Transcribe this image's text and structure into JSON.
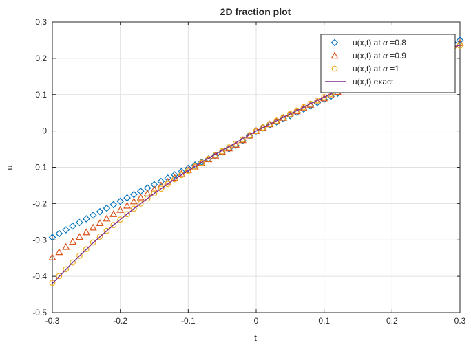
{
  "chart_data": {
    "type": "scatter",
    "title": "2D fraction plot",
    "xlabel": "t",
    "ylabel": "u",
    "xlim": [
      -0.3,
      0.3
    ],
    "ylim": [
      -0.5,
      0.3
    ],
    "xticks": [
      "-0.3",
      "-0.2",
      "-0.1",
      "0",
      "0.1",
      "0.2",
      "0.3"
    ],
    "yticks": [
      "0.3",
      "0.2",
      "0.1",
      "0",
      "-0.1",
      "-0.2",
      "-0.3",
      "-0.4",
      "-0.5"
    ],
    "grid": true,
    "legend_position": "top-right",
    "legend": [
      {
        "prefix": "u(x,t) at ",
        "symbol": "α",
        "suffix": " =0.8",
        "marker": "diamond",
        "color": "#0072BD"
      },
      {
        "prefix": "u(x,t) at ",
        "symbol": "α",
        "suffix": " =0.9",
        "marker": "triangle",
        "color": "#D95319"
      },
      {
        "prefix": "u(x,t) at ",
        "symbol": "α",
        "suffix": " =1",
        "marker": "circle",
        "color": "#EDB120"
      },
      {
        "prefix": "u(x,t) exact",
        "symbol": "",
        "suffix": "",
        "marker": "line",
        "color": "#7E2F8E"
      }
    ],
    "x": [
      -0.3,
      -0.27,
      -0.24,
      -0.21,
      -0.18,
      -0.15,
      -0.12,
      -0.09,
      -0.06,
      -0.03,
      0.0,
      0.03,
      0.06,
      0.09,
      0.12,
      0.15,
      0.18,
      0.21,
      0.24,
      0.27,
      0.3
    ],
    "series": [
      {
        "name": "u(x,t) at α =0.8",
        "marker": "diamond",
        "color": "#0072BD",
        "values": [
          -0.293,
          -0.262,
          -0.232,
          -0.203,
          -0.175,
          -0.148,
          -0.121,
          -0.094,
          -0.068,
          -0.04,
          0.0,
          0.025,
          0.051,
          0.078,
          0.104,
          0.131,
          0.157,
          0.182,
          0.207,
          0.23,
          0.25
        ]
      },
      {
        "name": "u(x,t) at α =0.9",
        "marker": "triangle",
        "color": "#D95319",
        "values": [
          -0.348,
          -0.305,
          -0.266,
          -0.229,
          -0.194,
          -0.161,
          -0.129,
          -0.098,
          -0.068,
          -0.038,
          0.0,
          0.027,
          0.054,
          0.081,
          0.107,
          0.133,
          0.158,
          0.183,
          0.206,
          0.226,
          0.242
        ]
      },
      {
        "name": "u(x,t) at α =1",
        "marker": "circle",
        "color": "#EDB120",
        "values": [
          -0.418,
          -0.362,
          -0.307,
          -0.259,
          -0.214,
          -0.172,
          -0.133,
          -0.098,
          -0.066,
          -0.035,
          0.0,
          0.028,
          0.056,
          0.084,
          0.111,
          0.137,
          0.161,
          0.184,
          0.205,
          0.222,
          0.235
        ]
      },
      {
        "name": "u(x,t) exact",
        "marker": "line",
        "color": "#7E2F8E",
        "values": [
          -0.42,
          -0.362,
          -0.308,
          -0.259,
          -0.214,
          -0.172,
          -0.133,
          -0.097,
          -0.064,
          -0.033,
          0.0,
          0.028,
          0.056,
          0.084,
          0.111,
          0.137,
          0.161,
          0.184,
          0.205,
          0.222,
          0.236
        ]
      }
    ]
  }
}
